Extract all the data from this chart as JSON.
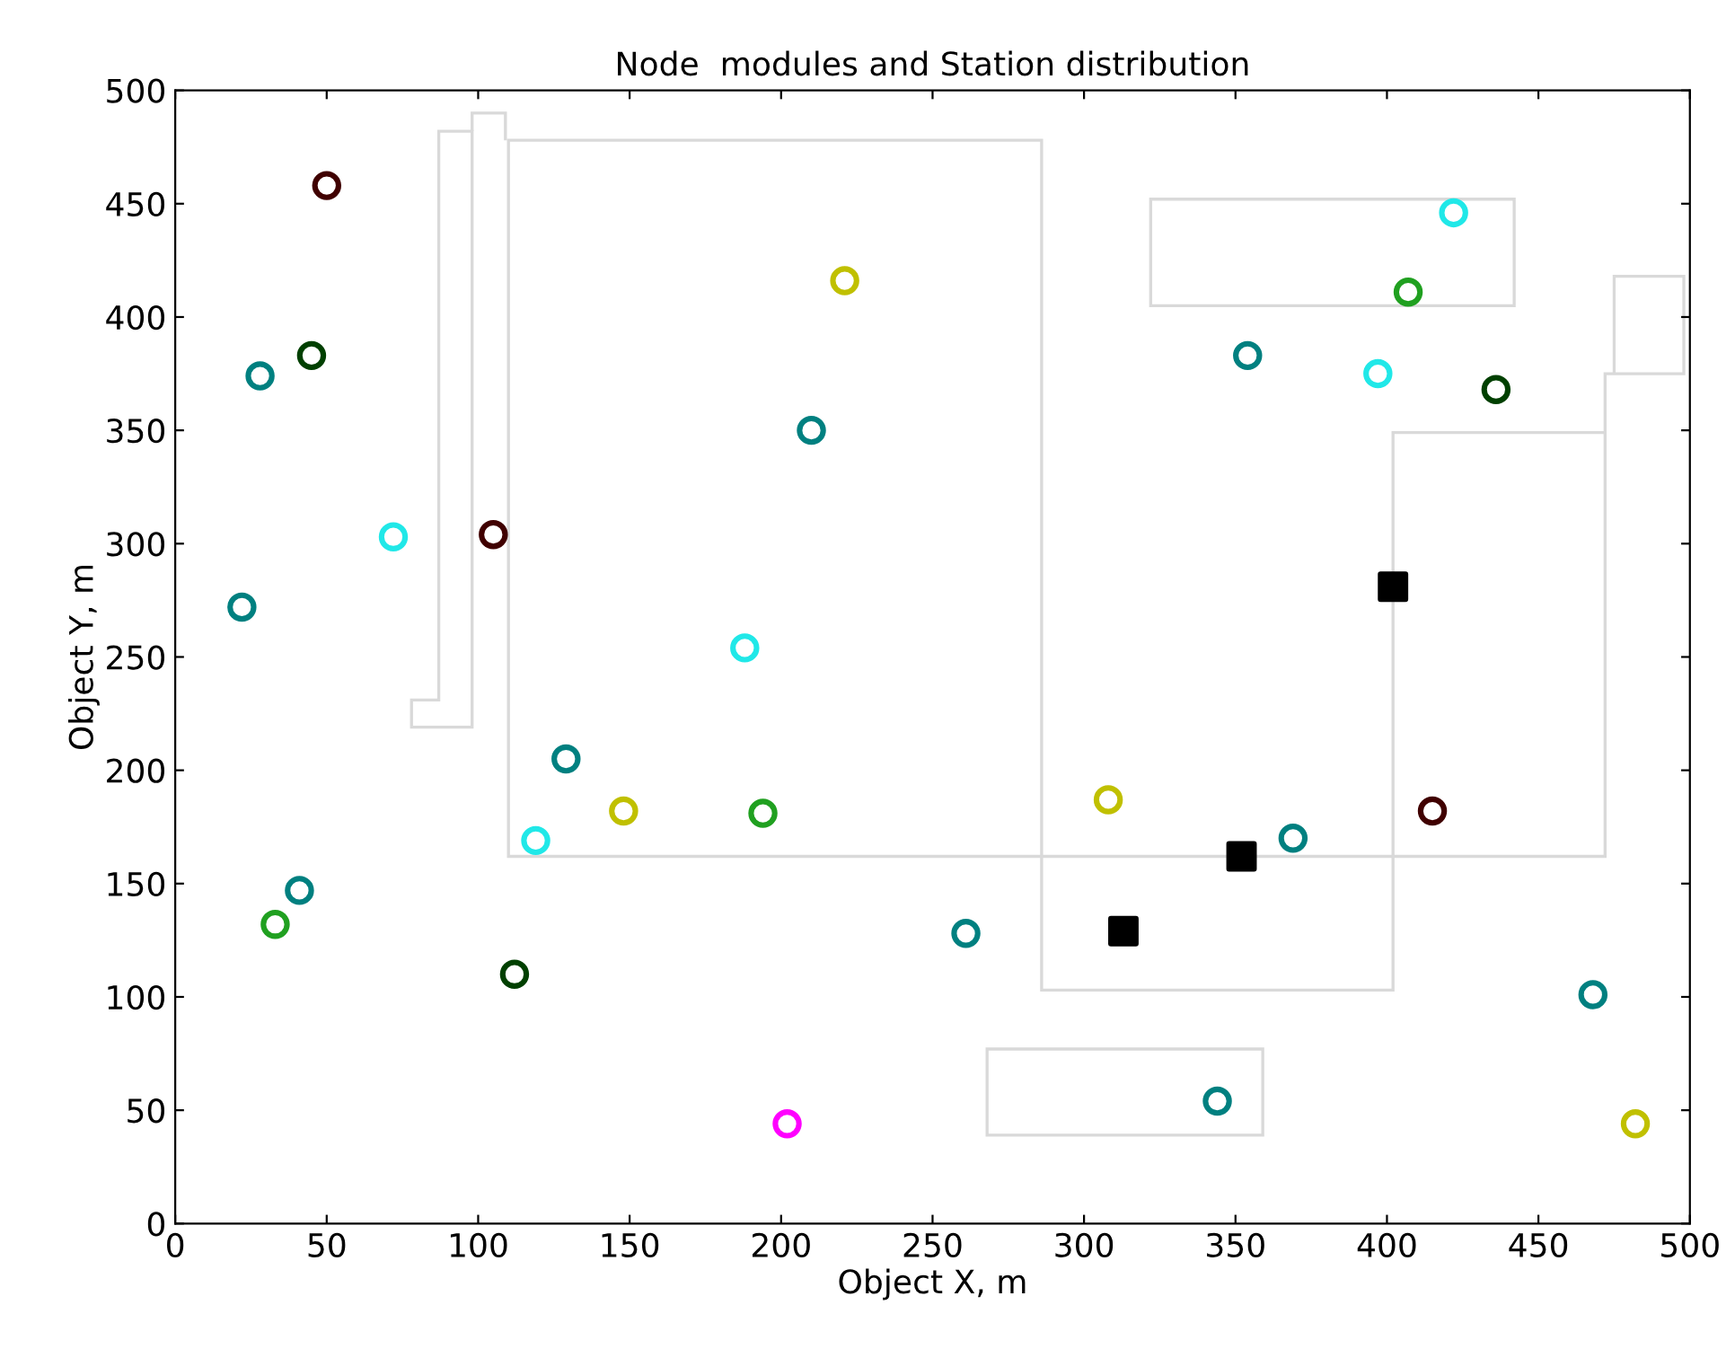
{
  "chart_data": {
    "type": "scatter",
    "title": "Node  modules and Station distribution",
    "xlabel": "Object X, m",
    "ylabel": "Object Y, m",
    "xlim": [
      0,
      500
    ],
    "ylim": [
      0,
      500
    ],
    "xticks": [
      0,
      50,
      100,
      150,
      200,
      250,
      300,
      350,
      400,
      450,
      500
    ],
    "yticks": [
      0,
      50,
      100,
      150,
      200,
      250,
      300,
      350,
      400,
      450,
      500
    ],
    "grid": false,
    "legend": false,
    "series": [
      {
        "color": "#008080",
        "marker": "circle",
        "x": [
          28,
          22,
          41,
          129,
          210,
          261,
          354,
          369,
          344,
          468
        ],
        "values": [
          374,
          272,
          147,
          205,
          350,
          128,
          383,
          170,
          54,
          101
        ]
      },
      {
        "color": "#004000",
        "marker": "circle",
        "x": [
          45,
          112,
          436
        ],
        "values": [
          383,
          110,
          368
        ]
      },
      {
        "color": "#20a020",
        "marker": "circle",
        "x": [
          33,
          194,
          407
        ],
        "values": [
          132,
          181,
          411
        ]
      },
      {
        "color": "#20e8e8",
        "marker": "circle",
        "x": [
          72,
          119,
          188,
          422,
          397
        ],
        "values": [
          303,
          169,
          254,
          446,
          375
        ]
      },
      {
        "color": "#c0c000",
        "marker": "circle",
        "x": [
          221,
          148,
          308,
          482
        ],
        "values": [
          416,
          182,
          187,
          44
        ]
      },
      {
        "color": "#400000",
        "marker": "circle",
        "x": [
          50,
          105,
          415
        ],
        "values": [
          458,
          304,
          182
        ]
      },
      {
        "color": "#ff00ff",
        "marker": "circle",
        "x": [
          202
        ],
        "values": [
          44
        ]
      },
      {
        "color": "#000000",
        "marker": "square",
        "x": [
          402,
          352,
          313
        ],
        "values": [
          281,
          162,
          129
        ]
      }
    ]
  }
}
